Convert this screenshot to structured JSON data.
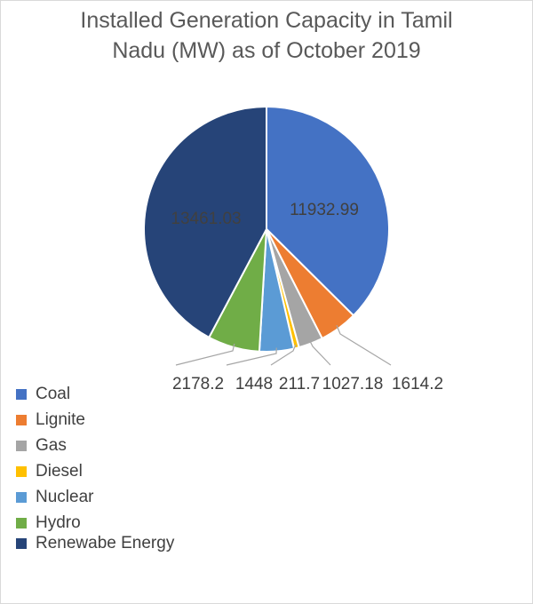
{
  "chart_data": {
    "type": "pie",
    "title_lines": [
      "Installed Generation Capacity in Tamil",
      "Nadu (MW) as of October 2019"
    ],
    "slices": [
      {
        "name": "Coal",
        "value": 11932.99,
        "label": "11932.99",
        "color": "#4472C4"
      },
      {
        "name": "Lignite",
        "value": 1614.2,
        "label": "1614.2",
        "color": "#ED7D31"
      },
      {
        "name": "Gas",
        "value": 1027.18,
        "label": "1027.18",
        "color": "#A5A5A5"
      },
      {
        "name": "Diesel",
        "value": 211.7,
        "label": "211.7",
        "color": "#FFC000"
      },
      {
        "name": "Nuclear",
        "value": 1448,
        "label": "1448",
        "color": "#5B9BD5"
      },
      {
        "name": "Hydro",
        "value": 2178.2,
        "label": "2178.2",
        "color": "#70AD47"
      },
      {
        "name": "Renewabe Energy",
        "value": 13461.03,
        "label": "13461.03",
        "color": "#264478"
      }
    ],
    "legend_position": "bottom-left"
  }
}
